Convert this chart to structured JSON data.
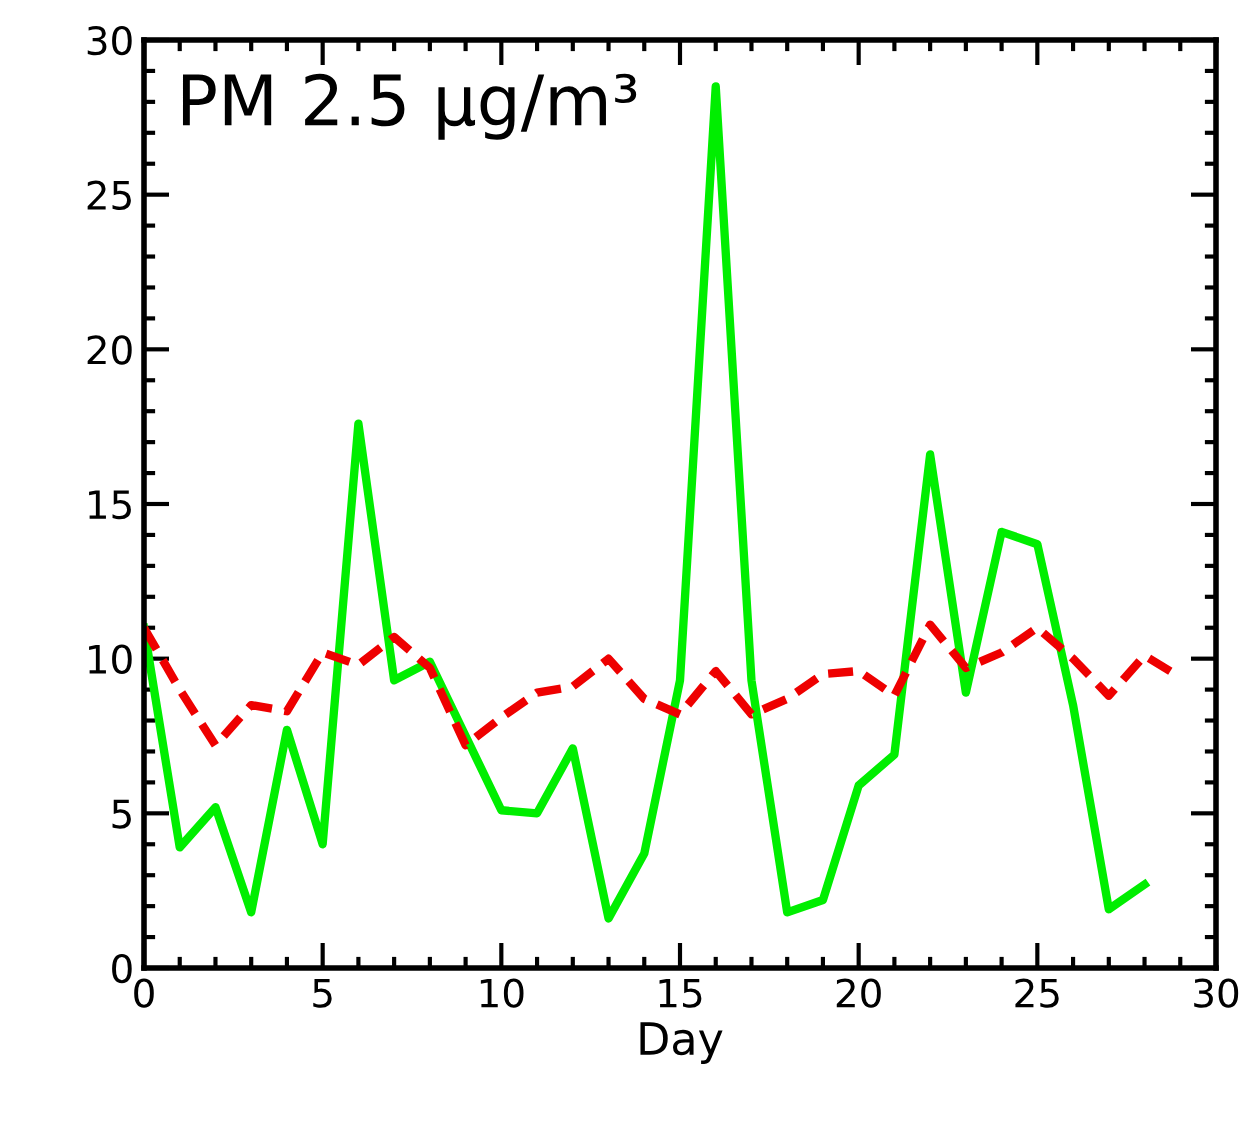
{
  "chart_data": {
    "type": "line",
    "title": "PM 2.5 μg/m³",
    "xlabel": "Day",
    "xlim": [
      0,
      30
    ],
    "xticks": [
      0,
      5,
      10,
      15,
      20,
      25,
      30
    ],
    "ylim": [
      0,
      30
    ],
    "yticks": [
      0,
      5,
      10,
      15,
      20,
      25,
      30
    ],
    "grid": false,
    "marker": "none",
    "series": [
      {
        "color": "#00ee00",
        "line_style": "solid",
        "x": [
          0,
          1,
          2,
          3,
          4,
          5,
          6,
          7,
          8,
          9,
          10,
          11,
          12,
          13,
          14,
          15,
          16,
          17,
          18,
          19,
          20,
          21,
          22,
          23,
          24,
          25,
          26,
          27,
          28
        ],
        "values": [
          11.0,
          3.9,
          5.2,
          1.8,
          7.7,
          4.0,
          17.6,
          9.3,
          9.9,
          7.5,
          5.1,
          5.0,
          7.1,
          1.6,
          3.7,
          9.3,
          28.5,
          9.3,
          1.8,
          2.2,
          5.9,
          6.9,
          16.6,
          8.9,
          14.1,
          13.7,
          8.5,
          1.9,
          2.7
        ]
      },
      {
        "color": "#ee0000",
        "line_style": "dashed",
        "x": [
          0,
          1,
          2,
          3,
          4,
          5,
          6,
          7,
          8,
          9,
          10,
          11,
          12,
          13,
          14,
          15,
          16,
          17,
          18,
          19,
          20,
          21,
          22,
          23,
          24,
          25,
          26,
          27,
          28,
          29
        ],
        "values": [
          11.0,
          9.0,
          7.2,
          8.5,
          8.3,
          10.2,
          9.8,
          10.7,
          9.7,
          7.2,
          8.1,
          8.9,
          9.1,
          10.0,
          8.7,
          8.2,
          9.6,
          8.2,
          8.7,
          9.5,
          9.6,
          8.8,
          11.1,
          9.7,
          10.2,
          11.0,
          10.0,
          8.8,
          10.1,
          9.4
        ]
      }
    ]
  }
}
